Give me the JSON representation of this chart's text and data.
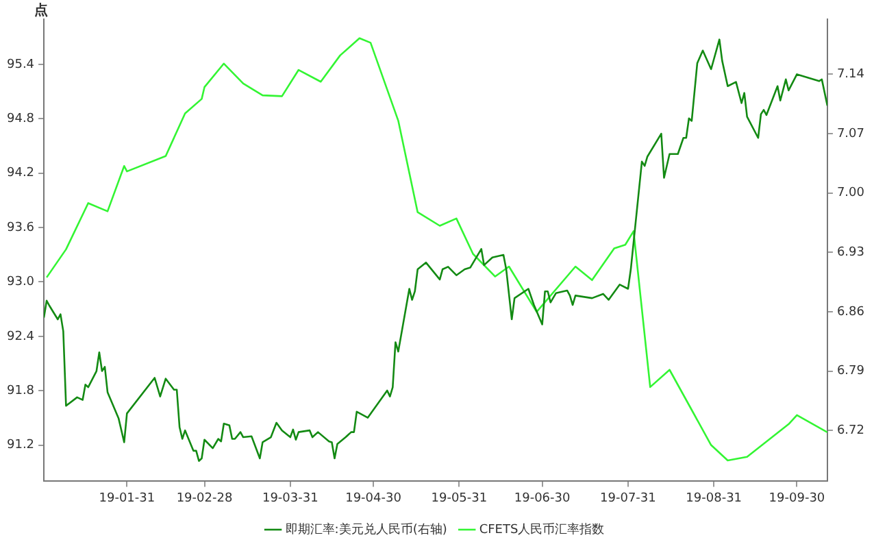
{
  "chart_data": {
    "type": "line",
    "ylabel": "点",
    "xlim": [
      "--01-01",
      "--10-11"
    ],
    "xticks": [
      {
        "value": "--01-31",
        "label": "19-01-31"
      },
      {
        "value": "--02-28",
        "label": "19-02-28"
      },
      {
        "value": "--03-31",
        "label": "19-03-31"
      },
      {
        "value": "--04-30",
        "label": "19-04-30"
      },
      {
        "value": "--05-31",
        "label": "19-05-31"
      },
      {
        "value": "--06-30",
        "label": "19-06-30"
      },
      {
        "value": "--07-31",
        "label": "19-07-31"
      },
      {
        "value": "--08-31",
        "label": "19-08-31"
      },
      {
        "value": "--09-30",
        "label": "19-09-30"
      }
    ],
    "ylim": [
      90.8,
      95.9
    ],
    "yticks": [
      91.2,
      91.8,
      92.4,
      {
        "value": 93,
        "label": "93.0"
      },
      93.6,
      94.2,
      94.8,
      95.4
    ],
    "y2lim": [
      6.66,
      7.205
    ],
    "y2ticks": [
      6.72,
      6.79,
      6.86,
      6.93,
      {
        "value": 7,
        "label": "7.00"
      },
      7.07,
      7.14
    ],
    "grid": false,
    "legend": "bottom",
    "marker": "none",
    "line_style": "solid",
    "series": [
      {
        "name": "即期汇率:美元兑人民币(右轴)",
        "color": "#138a13",
        "axis": "y2",
        "x": [
          "--01-01",
          "--01-02",
          "--01-03",
          "--01-06",
          "--01-07",
          "--01-08",
          "--01-09",
          "--01-13",
          "--01-15",
          "--01-16",
          "--01-17",
          "--01-20",
          "--01-21",
          "--01-22",
          "--01-23",
          "--01-24",
          "--01-28",
          "--01-30",
          "--01-31",
          "--02-10",
          "--02-12",
          "--02-14",
          "--02-17",
          "--02-18",
          "--02-19",
          "--02-20",
          "--02-21",
          "--02-24",
          "--02-25",
          "--02-26",
          "--02-27",
          "--02-28",
          "--03-03",
          "--03-05",
          "--03-06",
          "--03-07",
          "--03-09",
          "--03-10",
          "--03-11",
          "--03-13",
          "--03-14",
          "--03-17",
          "--03-20",
          "--03-21",
          "--03-24",
          "--03-26",
          "--03-28",
          "--03-31",
          "--04-01",
          "--04-02",
          "--04-03",
          "--04-07",
          "--04-08",
          "--04-10",
          "--04-14",
          "--04-15",
          "--04-16",
          "--04-17",
          "--04-20",
          "--04-22",
          "--04-23",
          "--04-24",
          "--04-28",
          "--05-05",
          "--05-06",
          "--05-07",
          "--05-08",
          "--05-09",
          "--05-13",
          "--05-14",
          "--05-15",
          "--05-16",
          "--05-19",
          "--05-24",
          "--05-25",
          "--05-27",
          "--05-30",
          "--06-02",
          "--06-04",
          "--06-08",
          "--06-09",
          "--06-12",
          "--06-16",
          "--06-17",
          "--06-19",
          "--06-20",
          "--06-25",
          "--06-27",
          "--06-30",
          "--07-01",
          "--07-02",
          "--07-03",
          "--07-05",
          "--07-09",
          "--07-10",
          "--07-11",
          "--07-12",
          "--07-18",
          "--07-22",
          "--07-24",
          "--07-28",
          "--07-31",
          "--08-01",
          "--08-05",
          "--08-06",
          "--08-07",
          "--08-12",
          "--08-13",
          "--08-15",
          "--08-18",
          "--08-20",
          "--08-21",
          "--08-22",
          "--08-23",
          "--08-25",
          "--08-27",
          "--08-30",
          "--09-02",
          "--09-03",
          "--09-05",
          "--09-08",
          "--09-10",
          "--09-11",
          "--09-12",
          "--09-16",
          "--09-17",
          "--09-18",
          "--09-19",
          "--09-23",
          "--09-24",
          "--09-26",
          "--09-27",
          "--09-30",
          "--10-08",
          "--10-09",
          "--10-11"
        ],
        "values": [
          6.853,
          6.873,
          6.867,
          6.851,
          6.857,
          6.837,
          6.749,
          6.759,
          6.756,
          6.774,
          6.771,
          6.79,
          6.812,
          6.79,
          6.795,
          6.765,
          6.734,
          6.706,
          6.74,
          6.782,
          6.76,
          6.781,
          6.768,
          6.768,
          6.724,
          6.71,
          6.72,
          6.696,
          6.696,
          6.684,
          6.687,
          6.709,
          6.699,
          6.71,
          6.707,
          6.728,
          6.726,
          6.71,
          6.71,
          6.718,
          6.712,
          6.713,
          6.687,
          6.706,
          6.712,
          6.729,
          6.72,
          6.712,
          6.721,
          6.709,
          6.718,
          6.72,
          6.712,
          6.718,
          6.707,
          6.706,
          6.687,
          6.704,
          6.712,
          6.718,
          6.718,
          6.742,
          6.735,
          6.767,
          6.76,
          6.771,
          6.824,
          6.813,
          6.887,
          6.874,
          6.884,
          6.91,
          6.918,
          6.898,
          6.91,
          6.913,
          6.903,
          6.91,
          6.912,
          6.934,
          6.915,
          6.924,
          6.927,
          6.91,
          6.851,
          6.876,
          6.887,
          6.868,
          6.845,
          6.884,
          6.884,
          6.871,
          6.882,
          6.885,
          6.879,
          6.868,
          6.879,
          6.876,
          6.881,
          6.874,
          6.892,
          6.887,
          6.91,
          7.037,
          7.032,
          7.043,
          7.07,
          7.018,
          7.046,
          7.046,
          7.065,
          7.065,
          7.088,
          7.085,
          7.153,
          7.168,
          7.146,
          7.181,
          7.156,
          7.126,
          7.131,
          7.106,
          7.118,
          7.09,
          7.065,
          7.093,
          7.098,
          7.092,
          7.126,
          7.109,
          7.134,
          7.121,
          7.14,
          7.132,
          7.134,
          7.103
        ]
      },
      {
        "name": "CFETS人民币汇率指数",
        "color": "#33f533",
        "x": [
          "--01-02",
          "--01-09",
          "--01-17",
          "--01-24",
          "--01-30",
          "--01-31",
          "--02-14",
          "--02-21",
          "--02-27",
          "--02-28",
          "--03-07",
          "--03-14",
          "--03-21",
          "--03-28",
          "--04-03",
          "--04-11",
          "--04-18",
          "--04-25",
          "--04-29",
          "--05-09",
          "--05-16",
          "--05-24",
          "--05-30",
          "--06-05",
          "--06-13",
          "--06-18",
          "--06-28",
          "--07-12",
          "--07-18",
          "--07-26",
          "--07-30",
          "--08-02",
          "--08-08",
          "--08-15",
          "--08-30",
          "--09-05",
          "--09-12",
          "--09-27",
          "--09-30",
          "--10-11"
        ],
        "values": [
          93.05,
          93.36,
          93.87,
          93.78,
          94.28,
          94.22,
          94.39,
          94.86,
          95.02,
          95.15,
          95.41,
          95.19,
          95.06,
          95.05,
          95.34,
          95.21,
          95.5,
          95.69,
          95.64,
          94.78,
          93.77,
          93.62,
          93.7,
          93.31,
          93.06,
          93.17,
          92.67,
          93.17,
          93.02,
          93.37,
          93.41,
          93.56,
          91.84,
          92.03,
          91.2,
          91.03,
          91.07,
          91.43,
          91.53,
          91.34
        ]
      }
    ]
  }
}
